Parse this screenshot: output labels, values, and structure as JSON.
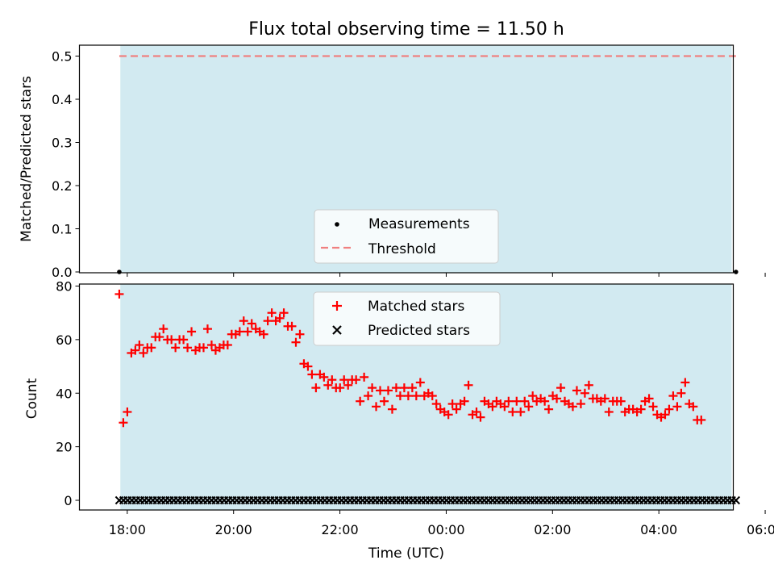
{
  "chart_data": [
    {
      "type": "scatter",
      "title": "Flux total observing time = 11.50 h",
      "xlabel": "",
      "ylabel": "Matched/Predicted stars",
      "ylim": [
        0,
        0.5
      ],
      "yticks": [
        0.0,
        0.1,
        0.2,
        0.3,
        0.4,
        0.5
      ],
      "ytick_labels": [
        "0.0",
        "0.1",
        "0.2",
        "0.3",
        "0.4",
        "0.5"
      ],
      "xlim_hours": [
        17.1,
        29.4
      ],
      "shaded_span_hours": [
        17.87,
        29.37
      ],
      "threshold": 0.5,
      "measurements_hours": [
        17.85,
        29.45
      ],
      "measurement_value": 0,
      "legend_position": "lower center",
      "legend": [
        "Measurements",
        "Threshold"
      ],
      "colors": {
        "span": "#add8e6",
        "threshold": "#f08080",
        "points": "#000000"
      }
    },
    {
      "type": "scatter",
      "title": "",
      "xlabel": "Time (UTC)",
      "ylabel": "Count",
      "ylim": [
        -3.5,
        81
      ],
      "yticks": [
        0,
        20,
        40,
        60,
        80
      ],
      "ytick_labels": [
        "0",
        "20",
        "40",
        "60",
        "80"
      ],
      "xlim_hours": [
        17.1,
        29.4
      ],
      "xticks_hours": [
        18,
        20,
        22,
        24,
        26,
        28,
        30
      ],
      "xtick_labels": [
        "18:00",
        "20:00",
        "22:00",
        "00:00",
        "02:00",
        "04:00",
        "06:00"
      ],
      "shaded_span_hours": [
        17.87,
        29.37
      ],
      "legend_position": "upper center",
      "legend": [
        "Matched stars",
        "Predicted stars"
      ],
      "colors": {
        "matched": "#ff0000",
        "predicted": "#000000",
        "span": "#add8e6"
      },
      "x_start_hours": 17.85,
      "x_step_hours": 0.0755,
      "series": [
        {
          "name": "Matched stars",
          "values": [
            77,
            29,
            33,
            55,
            56,
            58,
            55,
            57,
            57,
            61,
            61,
            64,
            60,
            60,
            57,
            60,
            60,
            57,
            63,
            56,
            57,
            57,
            64,
            58,
            56,
            57,
            58,
            58,
            62,
            62,
            63,
            67,
            63,
            66,
            64,
            63,
            62,
            67,
            70,
            67,
            68,
            70,
            65,
            65,
            59,
            62,
            51,
            50,
            47,
            42,
            47,
            46,
            43,
            45,
            42,
            42,
            45,
            43,
            45,
            45,
            37,
            46,
            39,
            42,
            35,
            41,
            37,
            41,
            34,
            42,
            39,
            42,
            39,
            42,
            39,
            44,
            39,
            40,
            39,
            36,
            34,
            33,
            32,
            36,
            34,
            36,
            37,
            43,
            32,
            33,
            31,
            37,
            36,
            35,
            37,
            36,
            35,
            37,
            33,
            37,
            33,
            37,
            35,
            39,
            37,
            38,
            37,
            34,
            39,
            38,
            42,
            37,
            36,
            35,
            41,
            36,
            40,
            43,
            38,
            38,
            37,
            38,
            33,
            37,
            37,
            37,
            33,
            34,
            34,
            33,
            34,
            37,
            38,
            35,
            32,
            31,
            32,
            34,
            39,
            35,
            40,
            44,
            36,
            35,
            30,
            30
          ]
        },
        {
          "name": "Predicted stars",
          "value": 0,
          "count": 148
        }
      ]
    }
  ]
}
